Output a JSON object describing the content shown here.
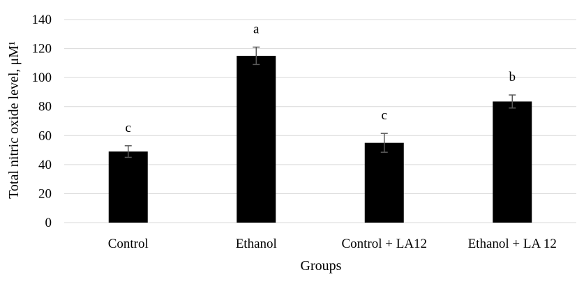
{
  "chart_data": {
    "type": "bar",
    "xlabel": "Groups",
    "ylabel": "Total nitric oxide level, μM¹",
    "ylim": [
      0,
      140
    ],
    "yticks": [
      0,
      20,
      40,
      60,
      80,
      100,
      120,
      140
    ],
    "grid": true,
    "categories": [
      "Control",
      "Ethanol",
      "Control + LA12",
      "Ethanol + LA 12"
    ],
    "values": [
      49,
      115,
      55,
      83.5
    ],
    "errors": [
      4,
      6,
      6.5,
      4.5
    ],
    "significance": [
      "c",
      "a",
      "c",
      "b"
    ],
    "bar_color": "#000000",
    "grid_color": "#d9d9d9"
  }
}
